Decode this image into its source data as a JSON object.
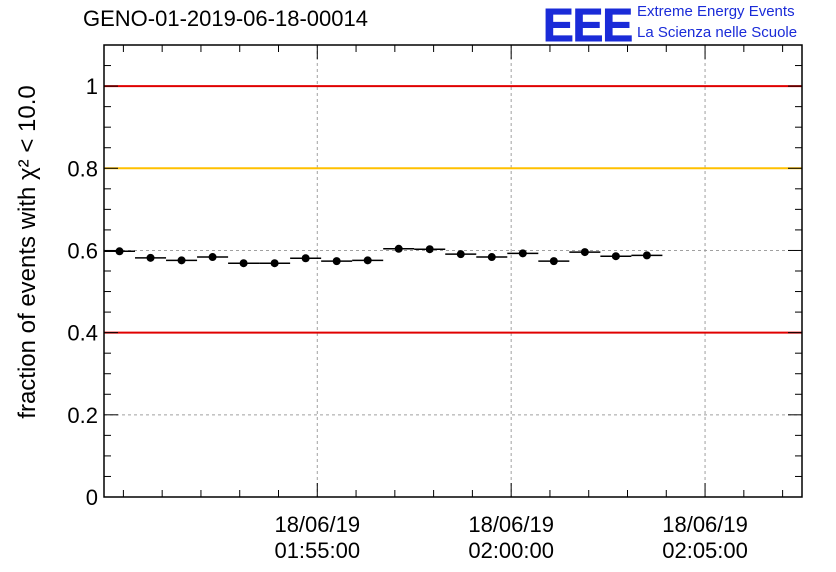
{
  "header": {
    "title": "GENO-01-2019-06-18-00014"
  },
  "logo": {
    "mark": "EEE",
    "line1": "Extreme Energy Events",
    "line2": "La Scienza nelle Scuole"
  },
  "colors": {
    "limit_line": "#e00000",
    "warning_line": "#ffc000",
    "marker": "#000000",
    "grid": "#999999",
    "logo": "#1a2bd8"
  },
  "chart_data": {
    "type": "scatter",
    "title": "GENO-01-2019-06-18-00014",
    "ylabel": "fraction of events with χ² < 10.0",
    "xlabel": "",
    "ylim": [
      0,
      1.1
    ],
    "y_ticks": [
      "0",
      "0.2",
      "0.4",
      "0.6",
      "0.8",
      "1"
    ],
    "x_ticks": [
      {
        "t": 10,
        "date": "18/06/19",
        "time": "01:55:00"
      },
      {
        "t": 15,
        "date": "18/06/19",
        "time": "02:00:00"
      },
      {
        "t": 20,
        "date": "18/06/19",
        "time": "02:05:00"
      }
    ],
    "x_range_minutes": [
      4.5,
      22.5
    ],
    "bin_width_minutes": 0.8,
    "points": [
      {
        "t": 4.9,
        "y": 0.598
      },
      {
        "t": 5.7,
        "y": 0.582
      },
      {
        "t": 6.5,
        "y": 0.576
      },
      {
        "t": 7.3,
        "y": 0.584
      },
      {
        "t": 8.1,
        "y": 0.569
      },
      {
        "t": 8.9,
        "y": 0.569
      },
      {
        "t": 9.7,
        "y": 0.581
      },
      {
        "t": 10.5,
        "y": 0.574
      },
      {
        "t": 11.3,
        "y": 0.576
      },
      {
        "t": 12.1,
        "y": 0.604
      },
      {
        "t": 12.9,
        "y": 0.603
      },
      {
        "t": 13.7,
        "y": 0.591
      },
      {
        "t": 14.5,
        "y": 0.584
      },
      {
        "t": 15.3,
        "y": 0.593
      },
      {
        "t": 16.1,
        "y": 0.574
      },
      {
        "t": 16.9,
        "y": 0.596
      },
      {
        "t": 17.7,
        "y": 0.586
      },
      {
        "t": 18.5,
        "y": 0.588
      }
    ],
    "reference_lines": [
      {
        "name": "upper-limit",
        "y": 1.0,
        "color": "#e00000"
      },
      {
        "name": "warning",
        "y": 0.8,
        "color": "#ffc000"
      },
      {
        "name": "lower-limit",
        "y": 0.4,
        "color": "#e00000"
      }
    ]
  }
}
